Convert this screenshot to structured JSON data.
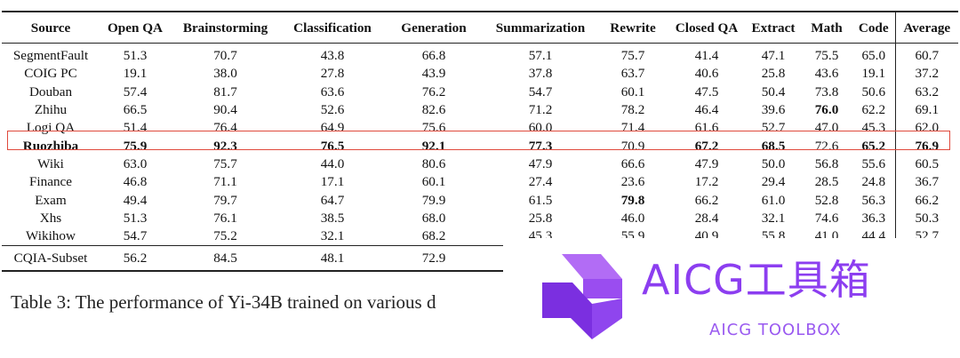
{
  "table": {
    "columns": [
      "Source",
      "Open QA",
      "Brainstorming",
      "Classification",
      "Generation",
      "Summarization",
      "Rewrite",
      "Closed QA",
      "Extract",
      "Math",
      "Code",
      "Average"
    ],
    "rows": [
      {
        "source": "SegmentFault",
        "values": [
          "51.3",
          "70.7",
          "43.8",
          "66.8",
          "57.1",
          "75.7",
          "41.4",
          "47.1",
          "75.5",
          "65.0",
          "60.7"
        ],
        "bold": []
      },
      {
        "source": "COIG PC",
        "values": [
          "19.1",
          "38.0",
          "27.8",
          "43.9",
          "37.8",
          "63.7",
          "40.6",
          "25.8",
          "43.6",
          "19.1",
          "37.2"
        ],
        "bold": []
      },
      {
        "source": "Douban",
        "values": [
          "57.4",
          "81.7",
          "63.6",
          "76.2",
          "54.7",
          "60.1",
          "47.5",
          "50.4",
          "73.8",
          "50.6",
          "63.2"
        ],
        "bold": []
      },
      {
        "source": "Zhihu",
        "values": [
          "66.5",
          "90.4",
          "52.6",
          "82.6",
          "71.2",
          "78.2",
          "46.4",
          "39.6",
          "76.0",
          "62.2",
          "69.1"
        ],
        "bold": [
          8
        ]
      },
      {
        "source": "Logi QA",
        "values": [
          "51.4",
          "76.4",
          "64.9",
          "75.6",
          "60.0",
          "71.4",
          "61.6",
          "52.7",
          "47.0",
          "45.3",
          "62.0"
        ],
        "bold": []
      },
      {
        "source": "Ruozhiba",
        "values": [
          "75.9",
          "92.3",
          "76.5",
          "92.1",
          "77.3",
          "70.9",
          "67.2",
          "68.5",
          "72.6",
          "65.2",
          "76.9"
        ],
        "bold": [
          -1,
          0,
          1,
          2,
          3,
          4,
          6,
          7,
          9,
          10
        ]
      },
      {
        "source": "Wiki",
        "values": [
          "63.0",
          "75.7",
          "44.0",
          "80.6",
          "47.9",
          "66.6",
          "47.9",
          "50.0",
          "56.8",
          "55.6",
          "60.5"
        ],
        "bold": []
      },
      {
        "source": "Finance",
        "values": [
          "46.8",
          "71.1",
          "17.1",
          "60.1",
          "27.4",
          "23.6",
          "17.2",
          "29.4",
          "28.5",
          "24.8",
          "36.7"
        ],
        "bold": []
      },
      {
        "source": "Exam",
        "values": [
          "49.4",
          "79.7",
          "64.7",
          "79.9",
          "61.5",
          "79.8",
          "66.2",
          "61.0",
          "52.8",
          "56.3",
          "66.2"
        ],
        "bold": [
          5
        ]
      },
      {
        "source": "Xhs",
        "values": [
          "51.3",
          "76.1",
          "38.5",
          "68.0",
          "25.8",
          "46.0",
          "28.4",
          "32.1",
          "74.6",
          "36.3",
          "50.3"
        ],
        "bold": []
      },
      {
        "source": "Wikihow",
        "values": [
          "54.7",
          "75.2",
          "32.1",
          "68.2",
          "45.3",
          "55.9",
          "40.9",
          "55.8",
          "41.0",
          "44.4",
          "52.7"
        ],
        "bold": []
      }
    ],
    "subset_row": {
      "source": "CQIA-Subset",
      "values": [
        "56.2",
        "84.5",
        "48.1",
        "72.9",
        "",
        "",
        "",
        "",
        "",
        "",
        ""
      ]
    },
    "highlighted_row": "Ruozhiba"
  },
  "caption": "Table 3: The performance of Yi-34B trained on various d",
  "watermark": {
    "title": "AICG工具箱",
    "subtitle": "AICG TOOLBOX",
    "color": "#8c3ef0"
  }
}
